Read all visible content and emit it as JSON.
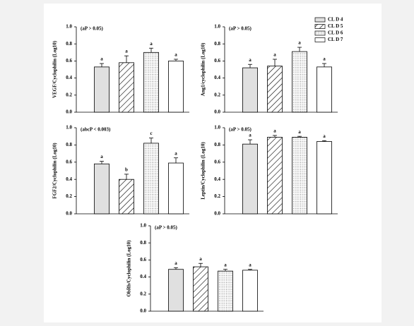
{
  "chart_data": [
    {
      "type": "bar",
      "y_label": "VEGF/Cyclophilin (Log10)",
      "annotation": "(aP > 0.05)",
      "values": [
        0.53,
        0.58,
        0.7,
        0.6
      ],
      "errors": [
        0.04,
        0.08,
        0.05,
        0.02
      ],
      "letters": [
        "a",
        "a",
        "a",
        "a"
      ],
      "ylim": [
        0,
        1
      ],
      "yticks": [
        {
          "value": 0,
          "label": "0.0"
        },
        0.2,
        0.4,
        0.6,
        0.8,
        {
          "value": 1,
          "label": "1.0"
        }
      ]
    },
    {
      "type": "bar",
      "y_label": "Ang1/cyclophilin (Log10)",
      "annotation": "(aP > 0.05)",
      "values": [
        0.52,
        0.54,
        0.71,
        0.53
      ],
      "errors": [
        0.04,
        0.08,
        0.05,
        0.04
      ],
      "letters": [
        "a",
        "a",
        "a",
        "a"
      ],
      "ylim": [
        0,
        1
      ],
      "yticks": [
        {
          "value": 0,
          "label": "0.0"
        },
        0.2,
        0.4,
        0.6,
        0.8,
        {
          "value": 1,
          "label": "1.0"
        }
      ]
    },
    {
      "type": "bar",
      "y_label": "FGF2/Cyclophilin (Log10)",
      "annotation": "(abcP < 0.003)",
      "values": [
        0.58,
        0.4,
        0.82,
        0.59
      ],
      "errors": [
        0.03,
        0.06,
        0.06,
        0.06
      ],
      "letters": [
        "a",
        "b",
        "c",
        "a"
      ],
      "ylim": [
        0,
        1
      ],
      "yticks": [
        {
          "value": 0,
          "label": "0.0"
        },
        0.2,
        0.4,
        0.6,
        0.8,
        {
          "value": 1,
          "label": "1.0"
        }
      ]
    },
    {
      "type": "bar",
      "y_label": "Leptin/Cyclophilin (Log10)",
      "annotation": "(aP > 0.05)",
      "values": [
        0.81,
        0.89,
        0.89,
        0.84
      ],
      "errors": [
        0.05,
        0.02,
        0.01,
        0.01
      ],
      "letters": [
        "a",
        "a",
        "a",
        "a"
      ],
      "ylim": [
        0,
        1
      ],
      "yticks": [
        {
          "value": 0,
          "label": "0.0"
        },
        0.2,
        0.4,
        0.6,
        0.8,
        {
          "value": 1,
          "label": "1.0"
        }
      ]
    },
    {
      "type": "bar",
      "y_label": "ObRb/Cyclophilin (Log10)",
      "annotation": "(aP > 0.05)",
      "values": [
        0.49,
        0.52,
        0.47,
        0.48
      ],
      "errors": [
        0.02,
        0.04,
        0.02,
        0.01
      ],
      "letters": [
        "a",
        "a",
        "a",
        "a"
      ],
      "ylim": [
        0,
        1
      ],
      "yticks": [
        {
          "value": 0,
          "label": "0.0"
        },
        0.2,
        0.4,
        0.6,
        0.8,
        {
          "value": 1,
          "label": "1.0"
        }
      ]
    }
  ],
  "legend": [
    {
      "name": "CL D 4",
      "pattern": "solid",
      "color": "#e0e0e0"
    },
    {
      "name": "CL D 5",
      "pattern": "hatch",
      "color": "#ffffff"
    },
    {
      "name": "CL D 6",
      "pattern": "dots",
      "color": "#ffffff"
    },
    {
      "name": "CL D 7",
      "pattern": "none",
      "color": "#ffffff"
    }
  ]
}
